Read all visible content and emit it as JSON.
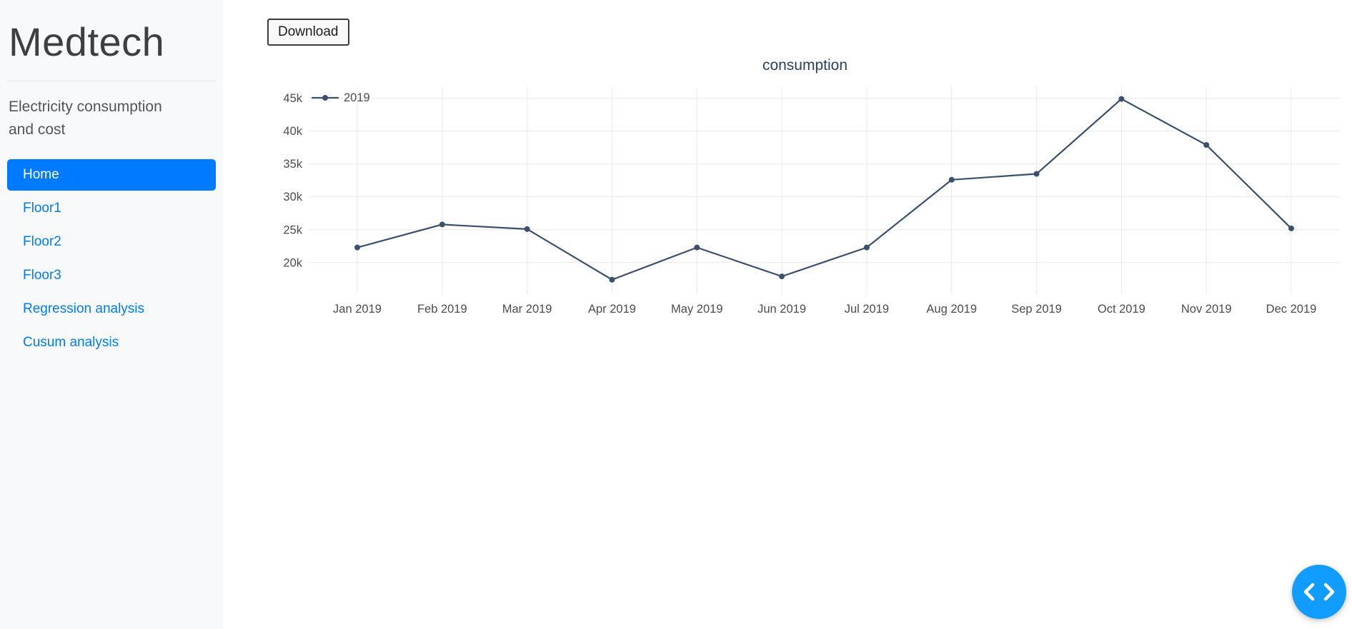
{
  "sidebar": {
    "brand": "Medtech",
    "subtitle": "Electricity consumption and cost",
    "items": [
      {
        "label": "Home",
        "active": true
      },
      {
        "label": "Floor1",
        "active": false
      },
      {
        "label": "Floor2",
        "active": false
      },
      {
        "label": "Floor3",
        "active": false
      },
      {
        "label": "Regression analysis",
        "active": false
      },
      {
        "label": "Cusum analysis",
        "active": false
      }
    ],
    "accent_color": "#007bff"
  },
  "toolbar": {
    "download_label": "Download"
  },
  "chart_data": {
    "type": "line",
    "title": "consumption",
    "categories": [
      "Jan 2019",
      "Feb 2019",
      "Mar 2019",
      "Apr 2019",
      "May 2019",
      "Jun 2019",
      "Jul 2019",
      "Aug 2019",
      "Sep 2019",
      "Oct 2019",
      "Nov 2019",
      "Dec 2019"
    ],
    "series": [
      {
        "name": "2019",
        "color": "#39516e",
        "values": [
          22300,
          25800,
          25100,
          17400,
          22300,
          17900,
          22300,
          32600,
          33500,
          44900,
          37900,
          25200
        ]
      }
    ],
    "yticks": [
      20000,
      25000,
      30000,
      35000,
      40000,
      45000
    ],
    "ytick_labels": [
      "20k",
      "25k",
      "30k",
      "35k",
      "40k",
      "45k"
    ],
    "ylim": [
      15200,
      46700
    ],
    "grid": true,
    "grid_color": "#e9e9e9",
    "legend_position": "top-left",
    "xlabel": "",
    "ylabel": ""
  },
  "debug_button": {
    "icon": "code-chevrons",
    "color": "#119dff"
  }
}
